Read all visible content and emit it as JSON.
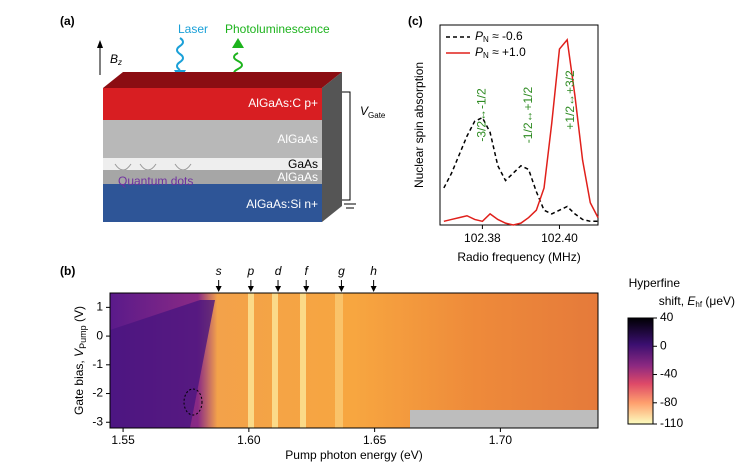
{
  "panel_a": {
    "label": "(a)",
    "bz": "B",
    "bz_sub": "z",
    "laser": "Laser",
    "pl": "Photoluminescence",
    "layers": [
      "AlGaAs:C p+",
      "AlGaAs",
      "GaAs",
      "AlGaAs",
      "AlGaAs:Si n+"
    ],
    "qd": "Quantum dots",
    "vgate": "V",
    "vgate_sub": "Gate"
  },
  "panel_b": {
    "label": "(b)",
    "xlabel": "Pump photon energy (eV)",
    "ylabel": "Gate bias, ",
    "ylabel_var": "V",
    "ylabel_sub": "Pump",
    "ylabel_unit": " (V)",
    "xlim": [
      1.5448,
      1.7388
    ],
    "ylim": [
      -3.2,
      1.5
    ],
    "xticks": [
      1.55,
      {
        "value": 1.6,
        "label": "1.60"
      },
      1.65,
      {
        "value": 1.7,
        "label": "1.70"
      }
    ],
    "yticks": [
      1,
      0,
      -1,
      -2,
      -3
    ],
    "markers": [
      {
        "label": "s",
        "value": 1.588
      },
      {
        "label": "p",
        "value": 1.6008
      },
      {
        "label": "d",
        "value": 1.6116
      },
      {
        "label": "f",
        "value": 1.6228
      },
      {
        "label": "g",
        "value": 1.6368
      },
      {
        "label": "h",
        "value": 1.6496
      }
    ],
    "colorbar": {
      "title": "Hyperfine",
      "title2": "shift, ",
      "title_var": "E",
      "title_sub": "hf",
      "title_unit": " (μeV)",
      "lim": [
        -110,
        40
      ],
      "ticks": [
        40,
        0,
        -40,
        -80,
        -110
      ]
    }
  },
  "chart_data": {
    "type": "line",
    "label": "(c)",
    "xlabel": "Radio frequency (MHz)",
    "ylabel": "Nuclear spin absorption",
    "xlim": [
      102.369,
      102.41
    ],
    "ylim": [
      0,
      1.08
    ],
    "xticks": [
      102.38,
      {
        "value": 102.4,
        "label": "102.40"
      }
    ],
    "legend_symbol": "P",
    "legend_sub": "N",
    "x": [
      102.37,
      102.372,
      102.374,
      102.376,
      102.378,
      102.38,
      102.382,
      102.384,
      102.386,
      102.388,
      102.39,
      102.392,
      102.394,
      102.396,
      102.398,
      102.4,
      102.402,
      102.404,
      102.406,
      102.408,
      102.41
    ],
    "series": [
      {
        "name": " ≈ -0.6",
        "color": "#000000",
        "dash": true,
        "values": [
          0.2,
          0.28,
          0.38,
          0.48,
          0.56,
          0.58,
          0.5,
          0.32,
          0.24,
          0.28,
          0.32,
          0.3,
          0.18,
          0.08,
          0.06,
          0.08,
          0.1,
          0.06,
          0.03,
          0.02,
          0.02
        ]
      },
      {
        "name": " ≈ +1.0",
        "color": "#e0201b",
        "dash": false,
        "values": [
          0.02,
          0.03,
          0.04,
          0.05,
          0.03,
          0.02,
          0.06,
          0.03,
          0.01,
          0,
          0.01,
          0.04,
          0.08,
          0.2,
          0.55,
          0.95,
          1.0,
          0.7,
          0.35,
          0.12,
          0.04
        ]
      }
    ],
    "annotations": [
      {
        "text": "-3/2↔-1/2",
        "x": 102.38
      },
      {
        "text": "-1/2↔+1/2",
        "x": 102.392
      },
      {
        "text": "+1/2↔+3/2",
        "x": 102.403
      }
    ]
  }
}
